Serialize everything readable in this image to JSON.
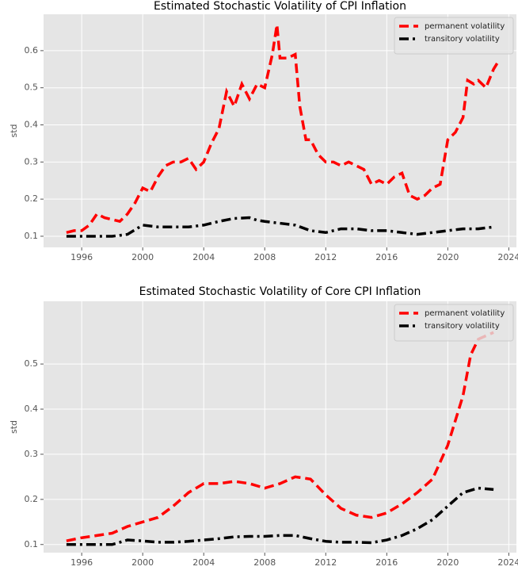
{
  "chart_data": [
    {
      "type": "line",
      "title": "Estimated Stochastic Volatility of CPI Inflation",
      "ylabel": "std",
      "xlim": [
        1993.5,
        2024.5
      ],
      "ylim": [
        0.07,
        0.698
      ],
      "xticks": [
        1996,
        2000,
        2004,
        2008,
        2012,
        2016,
        2020,
        2024
      ],
      "yticks": [
        0.1,
        0.2,
        0.3,
        0.4,
        0.5,
        0.6
      ],
      "grid": true,
      "legend": "upper right",
      "series": [
        {
          "name": "permanent volatility",
          "color": "#ff0000",
          "linestyle": "dashed",
          "x": [
            1995.0,
            1995.5,
            1996,
            1996.5,
            1997,
            1997.5,
            1998,
            1998.5,
            1999,
            1999.5,
            2000,
            2000.5,
            2001,
            2001.5,
            2002,
            2002.5,
            2003,
            2003.5,
            2004,
            2004.5,
            2005,
            2005.5,
            2006,
            2006.5,
            2007,
            2007.5,
            2008,
            2008.5,
            2008.8,
            2009,
            2009.5,
            2010,
            2010.3,
            2010.7,
            2011,
            2011.5,
            2012,
            2012.5,
            2013,
            2013.5,
            2014,
            2014.5,
            2015,
            2015.5,
            2016,
            2016.5,
            2017,
            2017.5,
            2018,
            2018.5,
            2019,
            2019.5,
            2020,
            2020.5,
            2021,
            2021.3,
            2021.7,
            2022,
            2022.5,
            2023,
            2023.3
          ],
          "values": [
            0.11,
            0.115,
            0.115,
            0.13,
            0.16,
            0.15,
            0.145,
            0.14,
            0.16,
            0.19,
            0.23,
            0.22,
            0.26,
            0.29,
            0.3,
            0.3,
            0.31,
            0.28,
            0.3,
            0.35,
            0.39,
            0.49,
            0.45,
            0.51,
            0.47,
            0.51,
            0.5,
            0.59,
            0.67,
            0.58,
            0.58,
            0.59,
            0.45,
            0.36,
            0.36,
            0.32,
            0.3,
            0.3,
            0.29,
            0.3,
            0.29,
            0.28,
            0.24,
            0.25,
            0.24,
            0.26,
            0.27,
            0.21,
            0.2,
            0.21,
            0.23,
            0.24,
            0.36,
            0.38,
            0.42,
            0.52,
            0.51,
            0.52,
            0.5,
            0.55,
            0.57
          ]
        },
        {
          "name": "transitory volatility",
          "color": "#000000",
          "linestyle": "dashdot",
          "x": [
            1995,
            1996,
            1997,
            1998,
            1999,
            2000,
            2001,
            2002,
            2003,
            2004,
            2005,
            2006,
            2007,
            2007.5,
            2008,
            2009,
            2010,
            2011,
            2012,
            2013,
            2014,
            2015,
            2016,
            2017,
            2018,
            2019,
            2020,
            2021,
            2022,
            2023
          ],
          "values": [
            0.1,
            0.1,
            0.1,
            0.1,
            0.105,
            0.13,
            0.125,
            0.125,
            0.125,
            0.13,
            0.14,
            0.148,
            0.15,
            0.143,
            0.14,
            0.135,
            0.13,
            0.115,
            0.11,
            0.12,
            0.12,
            0.115,
            0.115,
            0.11,
            0.105,
            0.11,
            0.115,
            0.12,
            0.12,
            0.125
          ]
        }
      ]
    },
    {
      "type": "line",
      "title": "Estimated Stochastic Volatility of Core CPI Inflation",
      "ylabel": "std",
      "xlim": [
        1993.5,
        2024.5
      ],
      "ylim": [
        0.082,
        0.639
      ],
      "xticks": [
        1996,
        2000,
        2004,
        2008,
        2012,
        2016,
        2020,
        2024
      ],
      "yticks": [
        0.1,
        0.2,
        0.3,
        0.4,
        0.5
      ],
      "grid": true,
      "legend": "upper right",
      "series": [
        {
          "name": "permanent volatility",
          "color": "#ff0000",
          "linestyle": "dashed",
          "x": [
            1995,
            1996,
            1997,
            1998,
            1999,
            2000,
            2001,
            2002,
            2003,
            2004,
            2005,
            2006,
            2007,
            2008,
            2009,
            2010,
            2011,
            2012,
            2013,
            2014,
            2015,
            2016,
            2017,
            2018,
            2019,
            2020,
            2021,
            2021.5,
            2022,
            2023
          ],
          "values": [
            0.108,
            0.115,
            0.12,
            0.125,
            0.14,
            0.15,
            0.16,
            0.185,
            0.215,
            0.235,
            0.235,
            0.24,
            0.235,
            0.225,
            0.235,
            0.25,
            0.245,
            0.21,
            0.18,
            0.165,
            0.16,
            0.17,
            0.19,
            0.215,
            0.245,
            0.32,
            0.43,
            0.52,
            0.555,
            0.57
          ]
        },
        {
          "name": "transitory volatility",
          "color": "#000000",
          "linestyle": "dashdot",
          "x": [
            1995,
            1996,
            1997,
            1998,
            1999,
            2000,
            2001,
            2002,
            2003,
            2004,
            2005,
            2006,
            2007,
            2008,
            2009,
            2010,
            2011,
            2012,
            2013,
            2014,
            2015,
            2016,
            2017,
            2018,
            2019,
            2020,
            2021,
            2022,
            2023
          ],
          "values": [
            0.1,
            0.1,
            0.1,
            0.1,
            0.11,
            0.108,
            0.105,
            0.105,
            0.107,
            0.11,
            0.113,
            0.117,
            0.118,
            0.118,
            0.12,
            0.12,
            0.113,
            0.107,
            0.105,
            0.105,
            0.104,
            0.11,
            0.12,
            0.135,
            0.155,
            0.185,
            0.215,
            0.225,
            0.222
          ]
        }
      ]
    }
  ]
}
